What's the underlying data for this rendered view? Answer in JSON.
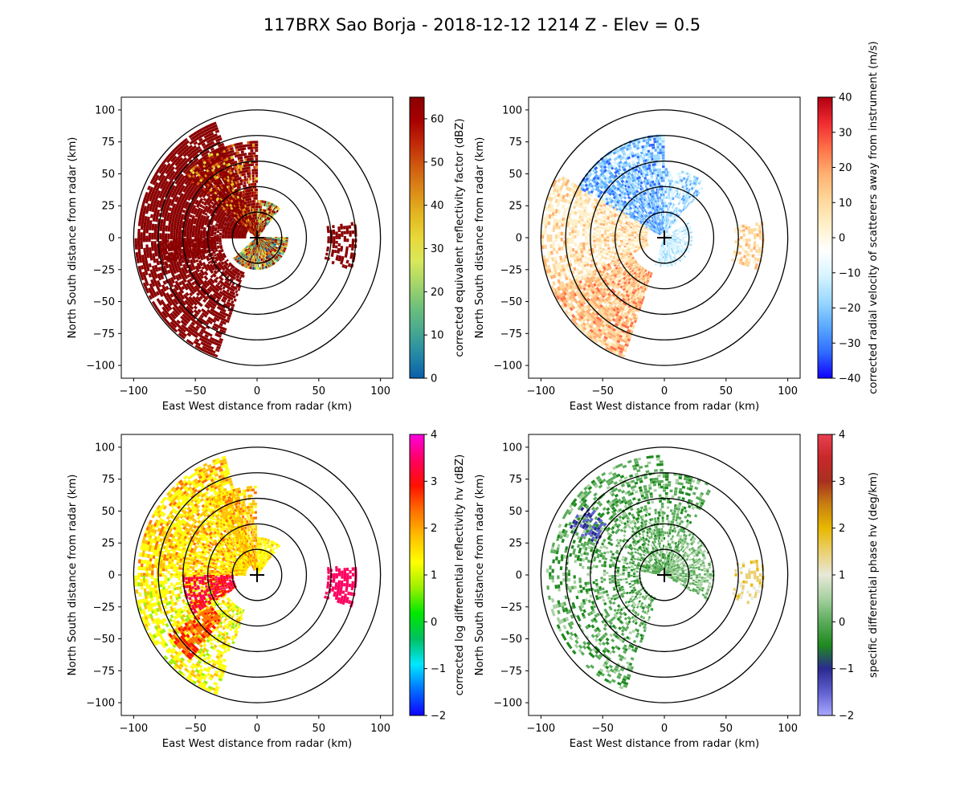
{
  "figure": {
    "title": "117BRX Sao Borja - 2018-12-12 1214 Z -  Elev = 0.5"
  },
  "chart_data": [
    {
      "type": "heatmap",
      "field": "reflectivity",
      "xlabel": "East West distance from radar (km)",
      "ylabel": "North South distance from radar (km)",
      "xlim": [
        -110,
        110
      ],
      "ylim": [
        -110,
        110
      ],
      "xticks": [
        "−100",
        "−50",
        "0",
        "50",
        "100"
      ],
      "yticks": [
        "100",
        "75",
        "50",
        "25",
        "0",
        "−25",
        "−50",
        "−75",
        "−100"
      ],
      "range_rings_km": [
        20,
        40,
        60,
        80,
        100
      ],
      "colorbar": {
        "label": "corrected equivalent reflectivity factor (dBZ)",
        "vmin": 0,
        "vmax": 65,
        "ticks": [
          "60",
          "50",
          "40",
          "30",
          "20",
          "10",
          "0"
        ],
        "tick_values": [
          60,
          50,
          40,
          30,
          20,
          10,
          0
        ],
        "colors": [
          "#0a5fa8",
          "#2489a6",
          "#47a890",
          "#6cbf7c",
          "#a4d56a",
          "#d8e85a",
          "#e8d83a",
          "#e3b620",
          "#dc8a18",
          "#d05c10",
          "#c22a08",
          "#a80000",
          "#8a0000"
        ]
      }
    },
    {
      "type": "heatmap",
      "field": "velocity",
      "xlabel": "East West distance from radar (km)",
      "ylabel": "North South distance from radar (km)",
      "xlim": [
        -110,
        110
      ],
      "ylim": [
        -110,
        110
      ],
      "xticks": [
        "−100",
        "−50",
        "0",
        "50",
        "100"
      ],
      "yticks": [
        "100",
        "75",
        "50",
        "25",
        "0",
        "−25",
        "−50",
        "−75",
        "−100"
      ],
      "range_rings_km": [
        20,
        40,
        60,
        80,
        100
      ],
      "colorbar": {
        "label": "corrected radial velocity of scatterers away from instrument (m/s)",
        "vmin": -40,
        "vmax": 40,
        "ticks": [
          "40",
          "30",
          "20",
          "10",
          "0",
          "−10",
          "−20",
          "−30",
          "−40"
        ],
        "tick_values": [
          40,
          30,
          20,
          10,
          0,
          -10,
          -20,
          -30,
          -40
        ],
        "colors": [
          "#1000ff",
          "#2f6bff",
          "#5aa8ff",
          "#9ad8ff",
          "#d6f4ff",
          "#ffffff",
          "#fff0c8",
          "#ffd79a",
          "#ffb070",
          "#ff7048",
          "#f02a30",
          "#b00010"
        ]
      }
    },
    {
      "type": "heatmap",
      "field": "differential_reflectivity",
      "xlabel": "East West distance from radar (km)",
      "ylabel": "North South distance from radar (km)",
      "xlim": [
        -110,
        110
      ],
      "ylim": [
        -110,
        110
      ],
      "xticks": [
        "−100",
        "−50",
        "0",
        "50",
        "100"
      ],
      "yticks": [
        "100",
        "75",
        "50",
        "25",
        "0",
        "−25",
        "−50",
        "−75",
        "−100"
      ],
      "range_rings_km": [
        20,
        40,
        60,
        80,
        100
      ],
      "colorbar": {
        "label": "corrected log differential reflectivity hv (dBZ)",
        "vmin": -2,
        "vmax": 4,
        "ticks": [
          "4",
          "3",
          "2",
          "1",
          "0",
          "−1",
          "−2"
        ],
        "tick_values": [
          4,
          3,
          2,
          1,
          0,
          -1,
          -2
        ],
        "colors": [
          "#1000ff",
          "#0070ff",
          "#00e8ff",
          "#00c060",
          "#00e800",
          "#9cf000",
          "#ffff00",
          "#ffc000",
          "#ff7000",
          "#ff1000",
          "#ff0060",
          "#ff00e0"
        ]
      }
    },
    {
      "type": "heatmap",
      "field": "specific_differential_phase",
      "xlabel": "East West distance from radar (km)",
      "ylabel": "North South distance from radar (km)",
      "xlim": [
        -110,
        110
      ],
      "ylim": [
        -110,
        110
      ],
      "xticks": [
        "−100",
        "−50",
        "0",
        "50",
        "100"
      ],
      "yticks": [
        "100",
        "75",
        "50",
        "25",
        "0",
        "−25",
        "−50",
        "−75",
        "−100"
      ],
      "range_rings_km": [
        20,
        40,
        60,
        80,
        100
      ],
      "colorbar": {
        "label": "specific differential phase hv (deg/km)",
        "vmin": -2,
        "vmax": 4,
        "ticks": [
          "4",
          "3",
          "2",
          "1",
          "0",
          "−1",
          "−2"
        ],
        "tick_values": [
          4,
          3,
          2,
          1,
          0,
          -1,
          -2
        ],
        "colors": [
          "#a8a8ff",
          "#6060d0",
          "#2a2a90",
          "#1f8a1f",
          "#5aab5a",
          "#a6d2a0",
          "#e8e8d8",
          "#ead070",
          "#e8b800",
          "#c88010",
          "#a83020",
          "#c8282a",
          "#e84050"
        ]
      }
    }
  ]
}
